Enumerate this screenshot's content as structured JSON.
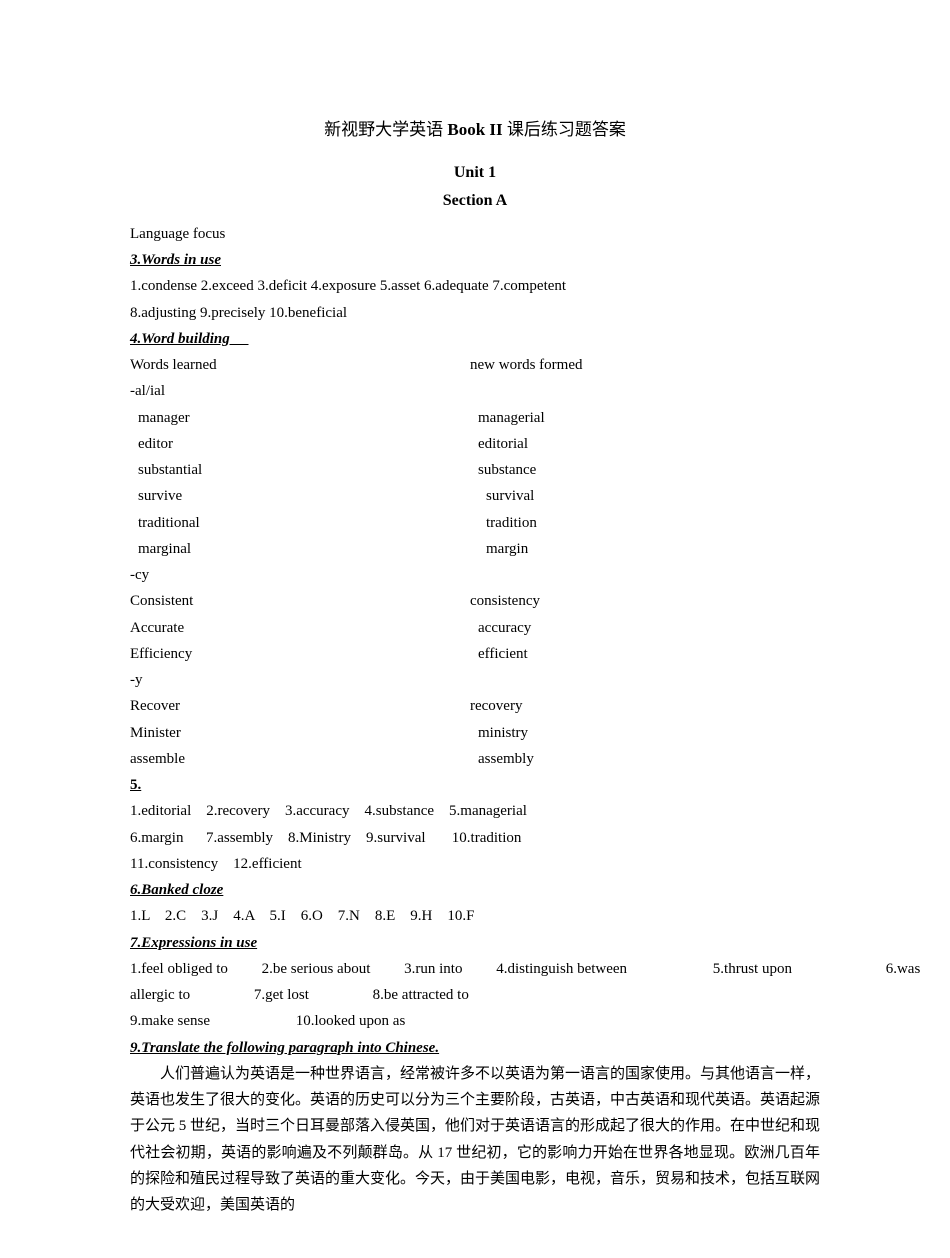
{
  "title": {
    "prefix": "新视野大学英语",
    "bold": " Book II ",
    "suffix": "课后练习题答案"
  },
  "unit": "Unit 1",
  "section": "Section A",
  "lang_focus": "Language focus",
  "h3": "3.Words in use",
  "words_in_use": {
    "line1": "1.condense 2.exceed 3.deficit 4.exposure 5.asset 6.adequate 7.competent",
    "line2": "8.adjusting 9.precisely 10.beneficial"
  },
  "h4": "4.Word building     ",
  "wb_header_left": "Words learned",
  "wb_header_right": "new words formed",
  "suffix1": "-al/ial",
  "pair1": {
    "l": "manager",
    "r": "managerial"
  },
  "pair2": {
    "l": "editor",
    "r": "editorial"
  },
  "pair3": {
    "l": "substantial",
    "r": "substance"
  },
  "pair4": {
    "l": "survive",
    "r": "survival"
  },
  "pair5": {
    "l": "traditional",
    "r": "tradition"
  },
  "pair6": {
    "l": "marginal",
    "r": "margin"
  },
  "suffix2": "-cy",
  "pair7": {
    "l": "Consistent",
    "r": "consistency"
  },
  "pair8": {
    "l": "Accurate",
    "r": "accuracy"
  },
  "pair9": {
    "l": "Efficiency",
    "r": "efficient"
  },
  "suffix3": "-y",
  "pair10": {
    "l": "Recover",
    "r": "recovery"
  },
  "pair11": {
    "l": "Minister",
    "r": "ministry"
  },
  "pair12": {
    "l": "assemble",
    "r": "assembly"
  },
  "h5": "5.",
  "ex5": {
    "line1": "1.editorial    2.recovery    3.accuracy    4.substance    5.managerial",
    "line2": "6.margin      7.assembly    8.Ministry    9.survival       10.tradition",
    "line3": "11.consistency    12.efficient"
  },
  "h6": "6.Banked cloze",
  "banked": "1.L    2.C    3.J    4.A    5.I    6.O    7.N    8.E    9.H    10.F",
  "h7": "7.Expressions in use",
  "expr": {
    "e1": "1.feel obliged to",
    "e2": "2.be serious about",
    "e3": "3.run into",
    "e4": "4.distinguish between",
    "e5": "5.thrust upon",
    "e6": "6.was",
    "line2a": "allergic to",
    "line2b": "7.get lost",
    "line2c": "8.be attracted to",
    "line3a": "9.make sense",
    "line3b": "10.looked upon as"
  },
  "h9": "9.Translate the following paragraph into Chinese.",
  "translation": "人们普遍认为英语是一种世界语言，经常被许多不以英语为第一语言的国家使用。与其他语言一样，英语也发生了很大的变化。英语的历史可以分为三个主要阶段，古英语，中古英语和现代英语。英语起源于公元 5 世纪，当时三个日耳曼部落入侵英国，他们对于英语语言的形成起了很大的作用。在中世纪和现代社会初期，英语的影响遍及不列颠群岛。从 17 世纪初，它的影响力开始在世界各地显现。欧洲几百年的探险和殖民过程导致了英语的重大变化。今天，由于美国电影，电视，音乐，贸易和技术，包括互联网的大受欢迎，美国英语的"
}
